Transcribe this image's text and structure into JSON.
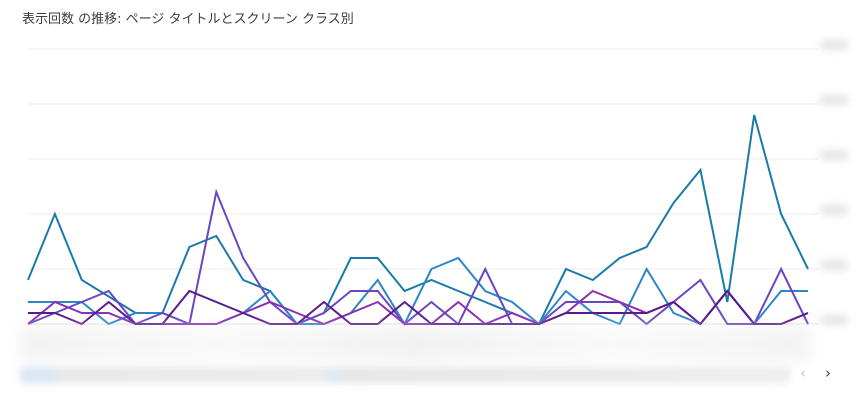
{
  "title": "表示回数 の推移: ページ タイトルとスクリーン クラス別",
  "pager": {
    "prev": "‹",
    "next": "›"
  },
  "chart_data": {
    "type": "line",
    "x": [
      0,
      1,
      2,
      3,
      4,
      5,
      6,
      7,
      8,
      9,
      10,
      11,
      12,
      13,
      14,
      15,
      16,
      17,
      18,
      19,
      20,
      21,
      22,
      23,
      24,
      25,
      26,
      27,
      28,
      29
    ],
    "ylim": [
      0,
      5
    ],
    "grid": true,
    "series": [
      {
        "color": "#1a7aa8",
        "values": [
          0.8,
          2.0,
          0.8,
          0.5,
          0.2,
          0.2,
          1.4,
          1.6,
          0.8,
          0.6,
          0,
          0.2,
          1.2,
          1.2,
          0.6,
          0.8,
          0.6,
          0.4,
          0.2,
          0,
          1.0,
          0.8,
          1.2,
          1.4,
          2.2,
          2.8,
          0.4,
          3.8,
          2.0,
          1.0
        ]
      },
      {
        "color": "#2e86c8",
        "values": [
          0.4,
          0.4,
          0.4,
          0,
          0.2,
          0.2,
          0,
          0,
          0.2,
          0.6,
          0,
          0,
          0.2,
          0.8,
          0,
          1.0,
          1.2,
          0.6,
          0.4,
          0,
          0.6,
          0.2,
          0,
          1.0,
          0.2,
          0,
          0.6,
          0,
          0.6,
          0.6
        ]
      },
      {
        "color": "#6a47c2",
        "values": [
          0,
          0.2,
          0.4,
          0.6,
          0,
          0.2,
          0,
          2.4,
          1.2,
          0.4,
          0,
          0.2,
          0.6,
          0.6,
          0,
          0.4,
          0,
          1.0,
          0,
          0,
          0.4,
          0.4,
          0.4,
          0,
          0.4,
          0.8,
          0,
          0,
          1.0,
          0
        ]
      },
      {
        "color": "#8a2fb0",
        "values": [
          0,
          0.4,
          0.2,
          0.2,
          0,
          0,
          0,
          0,
          0.2,
          0.4,
          0.2,
          0,
          0.2,
          0.4,
          0,
          0,
          0.4,
          0,
          0.2,
          0,
          0.2,
          0.6,
          0.4,
          0.2,
          0.4,
          0,
          0.6,
          0,
          0,
          0.2
        ]
      },
      {
        "color": "#5a1a8c",
        "values": [
          0.2,
          0.2,
          0,
          0.4,
          0,
          0,
          0.6,
          0.4,
          0.2,
          0,
          0,
          0.4,
          0,
          0,
          0.4,
          0,
          0,
          0,
          0,
          0,
          0.2,
          0.2,
          0.2,
          0.2,
          0.4,
          0,
          0.6,
          0,
          0,
          0.2
        ]
      }
    ]
  }
}
